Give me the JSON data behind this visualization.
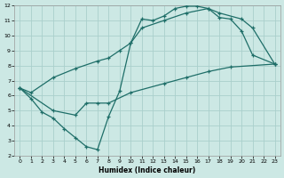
{
  "xlabel": "Humidex (Indice chaleur)",
  "bg_color": "#cce8e4",
  "grid_color": "#aacfcc",
  "line_color": "#1e6e68",
  "xlim": [
    -0.5,
    23.5
  ],
  "ylim": [
    2,
    12
  ],
  "xticks": [
    0,
    1,
    2,
    3,
    4,
    5,
    6,
    7,
    8,
    9,
    10,
    11,
    12,
    13,
    14,
    15,
    16,
    17,
    18,
    19,
    20,
    21,
    22,
    23
  ],
  "yticks": [
    2,
    3,
    4,
    5,
    6,
    7,
    8,
    9,
    10,
    11,
    12
  ],
  "line1_x": [
    0,
    1,
    2,
    3,
    4,
    5,
    6,
    7,
    8,
    9,
    10,
    11,
    12,
    13,
    14,
    15,
    16,
    17,
    18,
    19,
    20,
    21,
    23
  ],
  "line1_y": [
    6.5,
    5.8,
    4.9,
    4.5,
    3.8,
    3.2,
    2.6,
    2.4,
    4.6,
    6.3,
    9.5,
    11.1,
    11.0,
    11.3,
    11.8,
    11.95,
    11.95,
    11.8,
    11.2,
    11.1,
    10.3,
    8.7,
    8.1
  ],
  "line2_x": [
    0,
    1,
    3,
    5,
    7,
    8,
    9,
    10,
    11,
    13,
    15,
    17,
    18,
    20,
    21,
    23
  ],
  "line2_y": [
    6.5,
    6.2,
    7.2,
    7.8,
    8.3,
    8.5,
    9.0,
    9.5,
    10.5,
    11.0,
    11.5,
    11.8,
    11.5,
    11.1,
    10.5,
    8.1
  ],
  "line3_x": [
    0,
    3,
    5,
    6,
    7,
    8,
    10,
    13,
    15,
    17,
    19,
    23
  ],
  "line3_y": [
    6.5,
    5.0,
    4.7,
    5.5,
    5.5,
    5.5,
    6.2,
    6.8,
    7.2,
    7.6,
    7.9,
    8.1
  ]
}
